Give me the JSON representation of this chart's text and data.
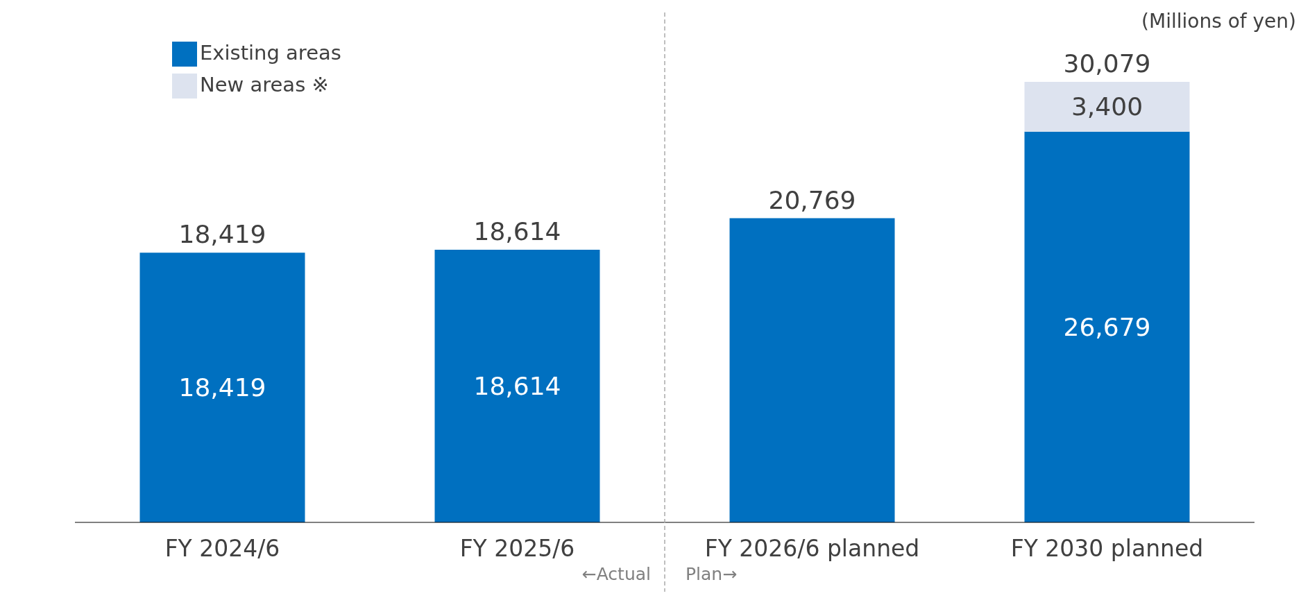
{
  "chart_data": {
    "type": "bar",
    "stacked": true,
    "categories": [
      "FY 2024/6",
      "FY 2025/6",
      "FY 2026/6 planned",
      "FY 2030 planned"
    ],
    "series": [
      {
        "name": "Existing areas",
        "color": "#0070c0",
        "values": [
          18419,
          18614,
          20769,
          26679
        ],
        "value_labels": [
          "18,419",
          "18,614",
          null,
          "26,679"
        ]
      },
      {
        "name": "New areas ※",
        "color": "#dde3ef",
        "values": [
          null,
          null,
          null,
          3400
        ],
        "value_labels": [
          null,
          null,
          null,
          "3,400"
        ]
      }
    ],
    "totals": [
      "18,419",
      "18,614",
      "20,769",
      "30,079"
    ],
    "annotations": [
      "(Millions of yen)",
      "←Actual",
      "Plan→"
    ],
    "legend": "top left",
    "grid": false,
    "tick_labels": "x"
  }
}
